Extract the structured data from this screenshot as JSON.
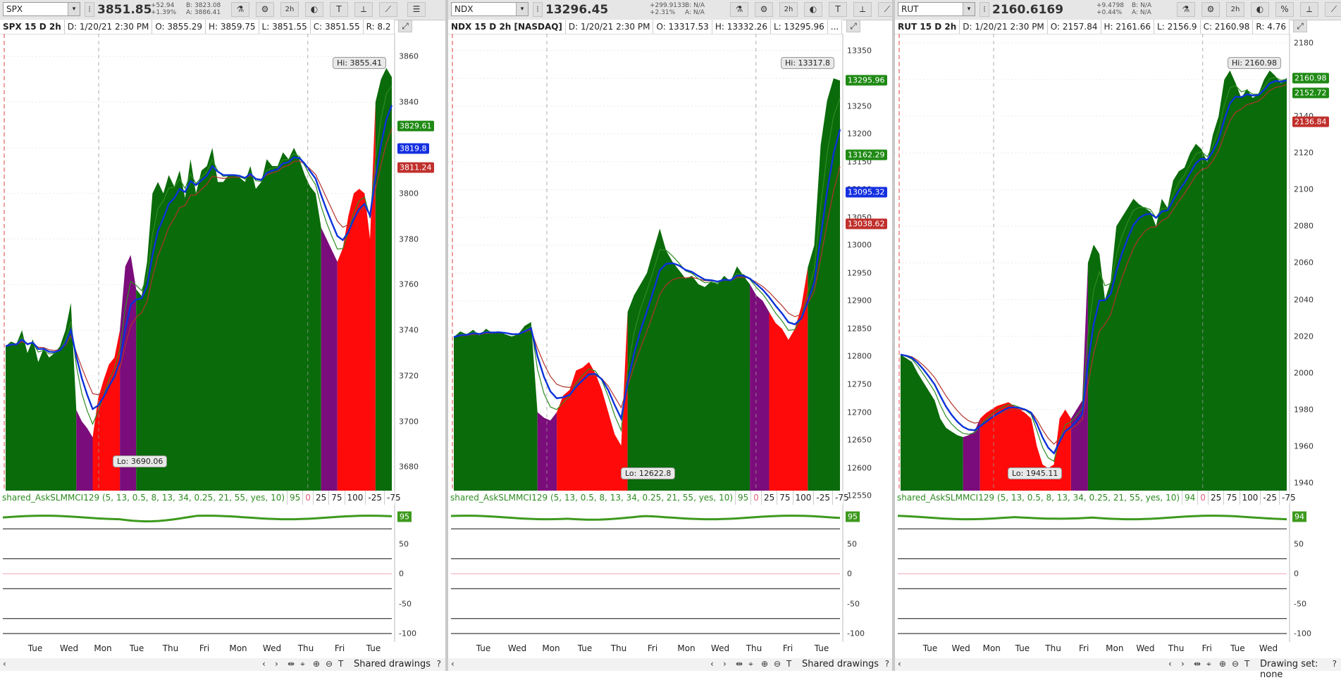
{
  "panels": [
    {
      "symbol": "SPX",
      "last": "3851.85",
      "chg_abs": "+52.94",
      "chg_pct": "+1.39%",
      "bid": "B: 3823.08",
      "ask": "A: 3886.41",
      "tf_button": "2h",
      "header": {
        "title": "SPX 15 D 2h",
        "date": "D: 1/20/21 2:30 PM",
        "open": "O: 3855.29",
        "high": "H: 3859.75",
        "low": "L: 3851.55",
        "close": "C: 3851.55",
        "extra": "R: 8.2"
      },
      "ylim": [
        3665,
        3870
      ],
      "yticks": [
        "3860",
        "3840",
        "3820",
        "3800",
        "3780",
        "3760",
        "3740",
        "3720",
        "3700",
        "3680"
      ],
      "price_tags": [
        {
          "label": "3829.61",
          "value": 3829.61,
          "color": "#1f8a14"
        },
        {
          "label": "3819.8",
          "value": 3819.8,
          "color": "#1530e0"
        },
        {
          "label": "3811.24",
          "value": 3811.24,
          "color": "#c0302c"
        }
      ],
      "hi_label": "Hi: 3855.41",
      "lo_label": "Lo: 3690.06",
      "study": {
        "name": "shared_AskSLMMCI129 (5, 13, 0.5, 8, 13, 34, 0.25, 21, 55, yes, 10)",
        "v1": "95",
        "v2": "0",
        "levels": [
          "25",
          "75",
          "100",
          "-25",
          "-75"
        ],
        "current": "95"
      },
      "lower_ticks": [
        "50",
        "0",
        "-50",
        "-100"
      ],
      "xlabels": [
        "Tue",
        "Wed",
        "Mon",
        "Tue",
        "Thu",
        "Fri",
        "Mon",
        "Wed",
        "Thu",
        "Fri",
        "Tue"
      ],
      "bottom_label": "Shared drawings",
      "colors": {
        "up": "#0a6b0a",
        "down": "#ff0a0a",
        "neutral": "#7b0c7b",
        "ema_fast": "#0b32d8",
        "ema_mid": "#2e8b22",
        "ema_slow": "#b2322c"
      },
      "segments": [
        {
          "c": "up",
          "v": [
            3733,
            3735,
            3734,
            3740,
            3730,
            3736,
            3726,
            3732,
            3728,
            3730,
            3733,
            3740,
            3752
          ]
        },
        {
          "c": "neutral",
          "v": [
            3705,
            3700,
            3697
          ]
        },
        {
          "c": "down",
          "v": [
            3693,
            3710,
            3718,
            3725,
            3728
          ]
        },
        {
          "c": "neutral",
          "v": [
            3740,
            3768,
            3773
          ]
        },
        {
          "c": "up",
          "v": [
            3758,
            3755,
            3770,
            3800,
            3805,
            3800,
            3808,
            3803,
            3810,
            3798,
            3815,
            3800,
            3810,
            3812,
            3820,
            3805,
            3805,
            3808,
            3808,
            3807,
            3805,
            3812,
            3802,
            3805,
            3815,
            3812,
            3812,
            3818,
            3815,
            3820,
            3815,
            3808,
            3803,
            3800
          ]
        },
        {
          "c": "neutral",
          "v": [
            3785,
            3780,
            3775
          ]
        },
        {
          "c": "down",
          "v": [
            3770,
            3776,
            3790,
            3800,
            3802,
            3800,
            3780
          ]
        },
        {
          "c": "up",
          "v": [
            3840,
            3850,
            3855,
            3851
          ]
        }
      ]
    },
    {
      "symbol": "NDX",
      "last": "13296.45",
      "chg_abs": "+299.9133",
      "chg_pct": "+2.31%",
      "bid": "B: N/A",
      "ask": "A: N/A",
      "tf_button": "2h",
      "header": {
        "title": "NDX 15 D 2h [NASDAQ]",
        "date": "D: 1/20/21 2:30 PM",
        "open": "O: 13317.53",
        "high": "H: 13332.26",
        "low": "L: 13295.96",
        "close": "",
        "extra": "..."
      },
      "ylim": [
        12540,
        13380
      ],
      "yticks": [
        "13350",
        "13300",
        "13250",
        "13200",
        "13150",
        "13100",
        "13050",
        "13000",
        "12950",
        "12900",
        "12850",
        "12800",
        "12750",
        "12700",
        "12650",
        "12600",
        "12550"
      ],
      "price_tags": [
        {
          "label": "13295.96",
          "value": 13295.96,
          "color": "#1f8a14"
        },
        {
          "label": "13162.29",
          "value": 13162.29,
          "color": "#1f8a14"
        },
        {
          "label": "13095.32",
          "value": 13095.32,
          "color": "#1530e0"
        },
        {
          "label": "13038.62",
          "value": 13038.62,
          "color": "#c0302c"
        }
      ],
      "hi_label": "Hi: 13317.8",
      "lo_label": "Lo: 12622.8",
      "study": {
        "name": "shared_AskSLMMCI129 (5, 13, 0.5, 8, 13, 34, 0.25, 21, 55, yes, 10)",
        "v1": "95",
        "v2": "0",
        "levels": [
          "25",
          "75",
          "100",
          "-25",
          "-75"
        ],
        "current": "95"
      },
      "lower_ticks": [
        "50",
        "0",
        "-50",
        "-100"
      ],
      "xlabels": [
        "Tue",
        "Wed",
        "Mon",
        "Tue",
        "Thu",
        "Fri",
        "Mon",
        "Wed",
        "Thu",
        "Fri",
        "Tue"
      ],
      "bottom_label": "Shared drawings",
      "colors": {
        "up": "#0a6b0a",
        "down": "#ff0a0a",
        "neutral": "#7b0c7b",
        "ema_fast": "#0b32d8",
        "ema_mid": "#2e8b22",
        "ema_slow": "#b2322c"
      },
      "segments": [
        {
          "c": "up",
          "v": [
            12835,
            12845,
            12840,
            12848,
            12838,
            12850,
            12842,
            12845,
            12840,
            12836,
            12840,
            12855,
            12862
          ]
        },
        {
          "c": "neutral",
          "v": [
            12700,
            12690,
            12685
          ]
        },
        {
          "c": "down",
          "v": [
            12700,
            12730,
            12740,
            12775,
            12780,
            12790,
            12770,
            12740,
            12700,
            12660,
            12640
          ]
        },
        {
          "c": "up",
          "v": [
            12880,
            12910,
            12930,
            12950,
            12990,
            13030,
            12990,
            12970,
            12955,
            12940,
            12945,
            12930,
            12925,
            12935,
            12930,
            12945,
            12935,
            12962,
            12945
          ]
        },
        {
          "c": "neutral",
          "v": [
            12930,
            12910,
            12900
          ]
        },
        {
          "c": "down",
          "v": [
            12880,
            12860,
            12850,
            12830,
            12850,
            12890
          ]
        },
        {
          "c": "up",
          "v": [
            12960,
            13000,
            13180,
            13260,
            13300,
            13296
          ]
        }
      ]
    },
    {
      "symbol": "RUT",
      "last": "2160.6169",
      "chg_abs": "+9.4798",
      "chg_pct": "+0.44%",
      "bid": "B: N/A",
      "ask": "A: N/A",
      "tf_button": "2h",
      "header": {
        "title": "RUT 15 D 2h",
        "date": "D: 1/20/21 2:30 PM",
        "open": "O: 2157.84",
        "high": "H: 2161.66",
        "low": "L: 2156.9",
        "close": "C: 2160.98",
        "extra": "R: 4.76"
      },
      "ylim": [
        1930,
        2185
      ],
      "yticks": [
        "2180",
        "2160",
        "2140",
        "2120",
        "2100",
        "2080",
        "2060",
        "2040",
        "2020",
        "2000",
        "1980",
        "1960",
        "1940"
      ],
      "price_tags": [
        {
          "label": "2160.98",
          "value": 2160.98,
          "color": "#1f8a14"
        },
        {
          "label": "2152.72",
          "value": 2152.72,
          "color": "#1f8a14"
        },
        {
          "label": "2136.84",
          "value": 2136.84,
          "color": "#c0302c"
        }
      ],
      "hi_label": "Hi: 2160.98",
      "lo_label": "Lo: 1945.11",
      "study": {
        "name": "shared_AskSLMMCI129 (5, 13, 0.5, 8, 13, 34, 0.25, 21, 55, yes, 10)",
        "v1": "94",
        "v2": "0",
        "levels": [
          "25",
          "75",
          "100",
          "-25",
          "-75"
        ],
        "current": "94"
      },
      "lower_ticks": [
        "50",
        "0",
        "-50",
        "-100"
      ],
      "xlabels": [
        "Tue",
        "Wed",
        "Mon",
        "Tue",
        "Thu",
        "Fri",
        "Mon",
        "Wed",
        "Thu",
        "Fri",
        "Tue",
        "Wed"
      ],
      "bottom_label": "Drawing set: none",
      "colors": {
        "up": "#0a6b0a",
        "down": "#ff0a0a",
        "neutral": "#7b0c7b",
        "ema_fast": "#0b32d8",
        "ema_mid": "#2e8b22",
        "ema_slow": "#b2322c"
      },
      "segments": [
        {
          "c": "up",
          "v": [
            2010,
            2008,
            2006,
            2000,
            1995,
            1990,
            1985,
            1975,
            1970,
            1968,
            1966
          ]
        },
        {
          "c": "neutral",
          "v": [
            1965,
            1966,
            1968
          ]
        },
        {
          "c": "down",
          "v": [
            1975,
            1978,
            1980,
            1982,
            1983,
            1984,
            1982,
            1980,
            1978,
            1975,
            1960,
            1950,
            1948,
            1950,
            1975,
            1980
          ]
        },
        {
          "c": "neutral",
          "v": [
            1975,
            1980,
            1985
          ]
        },
        {
          "c": "up",
          "v": [
            2060,
            2070,
            2065,
            2040,
            2050,
            2080,
            2085,
            2090,
            2095,
            2092,
            2090,
            2088,
            2080,
            2095,
            2090,
            2105,
            2110,
            2112,
            2120,
            2125,
            2122,
            2115,
            2130,
            2140,
            2160,
            2165,
            2158,
            2150,
            2155,
            2150,
            2152,
            2160,
            2165,
            2162,
            2158,
            2161
          ]
        }
      ]
    }
  ]
}
